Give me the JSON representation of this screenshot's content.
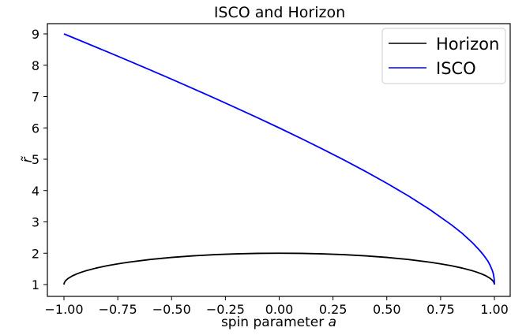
{
  "chart_data": {
    "type": "line",
    "title": "ISCO and Horizon",
    "xlabel_prefix": "spin parameter ",
    "xlabel_var": "a",
    "ylabel": "r̃",
    "xlim": [
      -1.0,
      1.0
    ],
    "ylim": [
      1.0,
      9.0
    ],
    "x_ticks": [
      -1.0,
      -0.75,
      -0.5,
      -0.25,
      0.0,
      0.25,
      0.5,
      0.75,
      1.0
    ],
    "x_tick_labels": [
      "−1.00",
      "−0.75",
      "−0.50",
      "−0.25",
      "0.00",
      "0.25",
      "0.50",
      "0.75",
      "1.00"
    ],
    "y_ticks": [
      1,
      2,
      3,
      4,
      5,
      6,
      7,
      8,
      9
    ],
    "y_tick_labels": [
      "1",
      "2",
      "3",
      "4",
      "5",
      "6",
      "7",
      "8",
      "9"
    ],
    "grid": false,
    "legend_position": "top-right",
    "series": [
      {
        "name": "Horizon",
        "color": "#000000",
        "x": [
          -1.0,
          -0.999,
          -0.995,
          -0.99,
          -0.98,
          -0.96,
          -0.94,
          -0.92,
          -0.9,
          -0.85,
          -0.8,
          -0.75,
          -0.7,
          -0.6,
          -0.5,
          -0.4,
          -0.3,
          -0.2,
          -0.1,
          0.0,
          0.1,
          0.2,
          0.3,
          0.4,
          0.5,
          0.6,
          0.7,
          0.75,
          0.8,
          0.85,
          0.9,
          0.92,
          0.94,
          0.96,
          0.98,
          0.99,
          0.995,
          0.999,
          1.0
        ],
        "y": [
          1.0,
          1.0447,
          1.0999,
          1.1411,
          1.199,
          1.28,
          1.3412,
          1.3919,
          1.4359,
          1.5268,
          1.6,
          1.6614,
          1.7141,
          1.8,
          1.866,
          1.9165,
          1.9539,
          1.9798,
          1.995,
          2.0,
          1.995,
          1.9798,
          1.9539,
          1.9165,
          1.866,
          1.8,
          1.7141,
          1.6614,
          1.6,
          1.5268,
          1.4359,
          1.3919,
          1.3412,
          1.28,
          1.199,
          1.1411,
          1.0999,
          1.0447,
          1.0
        ]
      },
      {
        "name": "ISCO",
        "color": "#0000ff",
        "x": [
          -1.0,
          -0.9,
          -0.8,
          -0.7,
          -0.6,
          -0.5,
          -0.4,
          -0.3,
          -0.2,
          -0.1,
          0.0,
          0.1,
          0.2,
          0.3,
          0.4,
          0.5,
          0.6,
          0.7,
          0.8,
          0.85,
          0.9,
          0.93,
          0.95,
          0.97,
          0.98,
          0.99,
          0.995,
          0.999,
          1.0
        ],
        "y": [
          9.0,
          8.7173,
          8.4315,
          8.1432,
          7.8513,
          7.5546,
          7.2537,
          6.9493,
          6.6372,
          6.3231,
          6.0,
          5.6693,
          5.3294,
          4.9786,
          4.6144,
          4.233,
          3.8294,
          3.3931,
          2.907,
          2.6371,
          2.3209,
          2.1006,
          1.9372,
          1.7443,
          1.6139,
          1.4544,
          1.3424,
          1.18,
          1.0
        ]
      }
    ]
  }
}
